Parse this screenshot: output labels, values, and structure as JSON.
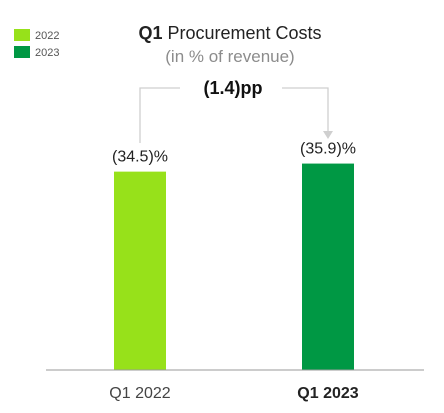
{
  "chart_data": {
    "type": "bar",
    "title_bold": "Q1",
    "title_rest": " Procurement Costs",
    "subtitle": "(in % of revenue)",
    "categories": [
      "Q1 2022",
      "Q1 2023"
    ],
    "values": [
      34.5,
      35.9
    ],
    "value_labels": [
      "(34.5)%",
      "(35.9)%"
    ],
    "bar_colors": [
      "#97e11a",
      "#009844"
    ],
    "highlight_category_index": 1,
    "legend": [
      {
        "label": "2022",
        "color": "#97e11a"
      },
      {
        "label": "2023",
        "color": "#009844"
      }
    ],
    "legend_position": "top-left",
    "annotation": {
      "text": "(1.4)pp",
      "from_index": 0,
      "to_index": 1
    },
    "ylim": [
      0,
      40
    ],
    "xlabel": "",
    "ylabel": "",
    "grid": false
  }
}
